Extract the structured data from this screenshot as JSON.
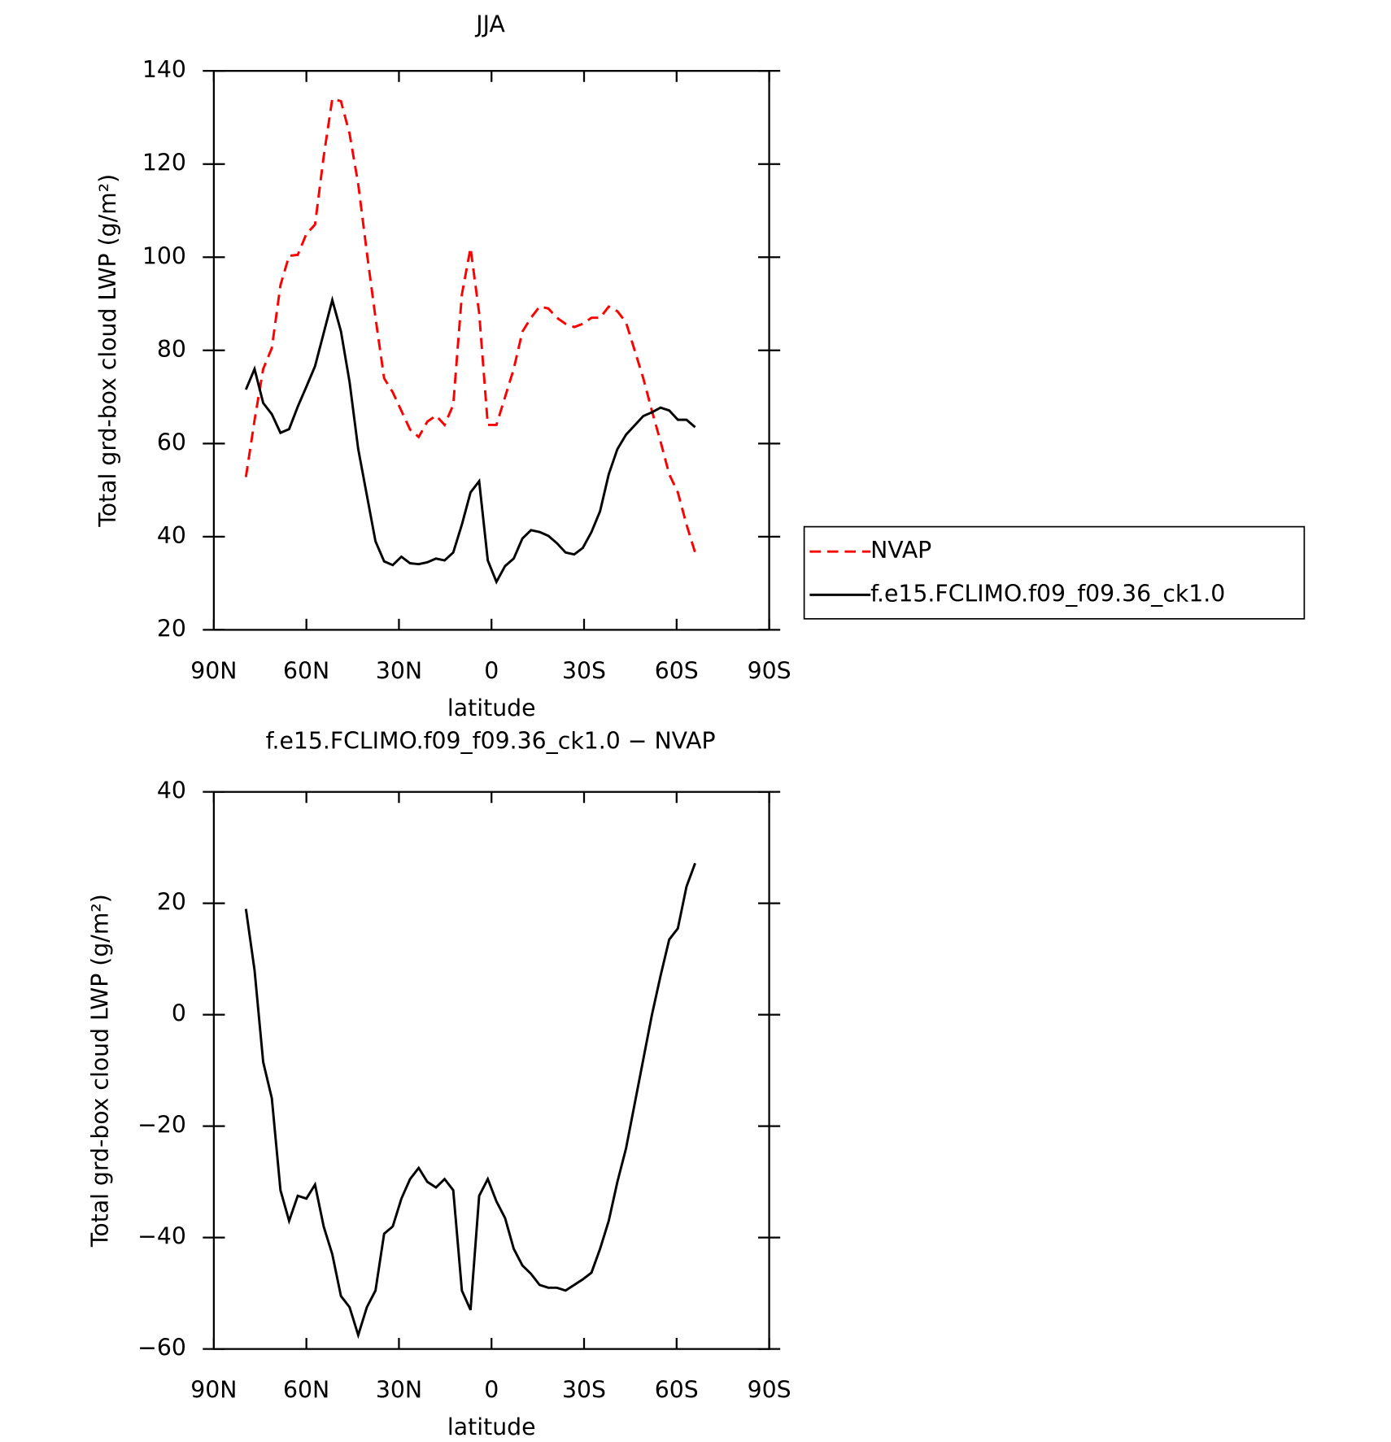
{
  "chart_data": [
    {
      "type": "line",
      "title": "JJA",
      "xlabel": "latitude",
      "ylabel": "Total grd-box cloud LWP (g/m²)",
      "x": [
        79.6,
        76.8,
        74.0,
        71.2,
        68.4,
        65.6,
        62.8,
        60.0,
        57.2,
        54.4,
        51.6,
        48.8,
        46.0,
        43.2,
        40.4,
        37.6,
        34.8,
        32.0,
        29.2,
        26.4,
        23.6,
        20.8,
        18.0,
        15.2,
        12.4,
        9.6,
        6.8,
        4.0,
        1.2,
        -1.6,
        -4.4,
        -7.2,
        -10.0,
        -12.8,
        -15.6,
        -18.4,
        -21.2,
        -24.0,
        -26.8,
        -29.6,
        -32.4,
        -35.2,
        -38.0,
        -40.8,
        -43.6,
        -46.4,
        -49.2,
        -52.0,
        -54.8,
        -57.6,
        -60.4,
        -63.2,
        -66.0
      ],
      "series": [
        {
          "name": "NVAP",
          "color": "#ff0000",
          "line_style": "dashed",
          "values": [
            52.8,
            65,
            76,
            80.5,
            94,
            100.3,
            100.5,
            105,
            107,
            121.6,
            134,
            133.5,
            126.5,
            115.7,
            101,
            87,
            74,
            71,
            67,
            63,
            61.4,
            64.7,
            66,
            64,
            68.3,
            92,
            102,
            88,
            64,
            64,
            70,
            76,
            84,
            87,
            89.4,
            89,
            87,
            85.7,
            85,
            85.7,
            87,
            87,
            89.4,
            88.4,
            86,
            80,
            74,
            67,
            60.4,
            53.4,
            49.5,
            42.6,
            36.6
          ]
        },
        {
          "name": "f.e15.FCLIMO.f09_f09.36_ck1.0",
          "color": "#000000",
          "line_style": "solid",
          "values": [
            71.6,
            76,
            68.7,
            66.3,
            62.3,
            63.1,
            67.9,
            72.2,
            76.6,
            83.7,
            90.8,
            84.1,
            73.2,
            58.8,
            48.9,
            39,
            34.7,
            33.9,
            35.7,
            34.3,
            34.1,
            34.5,
            35.3,
            34.9,
            36.6,
            42.6,
            49.5,
            51.9,
            34.9,
            30.3,
            33.7,
            35.3,
            39.6,
            41.4,
            41,
            40.2,
            38.6,
            36.6,
            36.2,
            37.6,
            41,
            45.5,
            53.4,
            58.8,
            61.9,
            63.9,
            65.9,
            66.7,
            67.7,
            67.1,
            65.1,
            65.1,
            63.5
          ]
        }
      ],
      "xlim": [
        90,
        -90
      ],
      "xticks": [
        {
          "value": 90,
          "label": "90N"
        },
        {
          "value": 60,
          "label": "60N"
        },
        {
          "value": 30,
          "label": "30N"
        },
        0,
        {
          "value": -30,
          "label": "30S"
        },
        {
          "value": -60,
          "label": "60S"
        },
        {
          "value": -90,
          "label": "90S"
        }
      ],
      "ylim": [
        20,
        140
      ],
      "yticks": [
        20,
        40,
        60,
        80,
        100,
        120,
        140
      ],
      "legend": "right"
    },
    {
      "type": "line",
      "title": "f.e15.FCLIMO.f09_f09.36_ck1.0 − NVAP",
      "xlabel": "latitude",
      "ylabel": "Total grd-box cloud LWP (g/m²)",
      "x": [
        79.6,
        76.8,
        74.0,
        71.2,
        68.4,
        65.6,
        62.8,
        60.0,
        57.2,
        54.4,
        51.6,
        48.8,
        46.0,
        43.2,
        40.4,
        37.6,
        34.8,
        32.0,
        29.2,
        26.4,
        23.6,
        20.8,
        18.0,
        15.2,
        12.4,
        9.6,
        6.8,
        4.0,
        1.2,
        -1.6,
        -4.4,
        -7.2,
        -10.0,
        -12.8,
        -15.6,
        -18.4,
        -21.2,
        -24.0,
        -26.8,
        -29.6,
        -32.4,
        -35.2,
        -38.0,
        -40.8,
        -43.6,
        -46.4,
        -49.2,
        -52.0,
        -54.8,
        -57.6,
        -60.4,
        -63.2,
        -66.0
      ],
      "values": [
        19,
        8,
        -8.5,
        -15,
        -31.5,
        -37,
        -32.5,
        -33,
        -30.5,
        -38,
        -43,
        -50.5,
        -52.5,
        -57.5,
        -52.5,
        -49.5,
        -39.3,
        -38,
        -33,
        -29.5,
        -27.5,
        -30,
        -31,
        -29.5,
        -31.5,
        -49.5,
        -53,
        -32.5,
        -29.5,
        -33.5,
        -36.5,
        -42,
        -45,
        -46.5,
        -48.5,
        -49,
        -49,
        -49.5,
        -48.5,
        -47.5,
        -46.3,
        -42,
        -37,
        -30,
        -24,
        -16,
        -8,
        0,
        7,
        13.5,
        15.5,
        23,
        27.2
      ],
      "color": "#000000",
      "line_style": "solid",
      "xlim": [
        90,
        -90
      ],
      "xticks": [
        {
          "value": 90,
          "label": "90N"
        },
        {
          "value": 60,
          "label": "60N"
        },
        {
          "value": 30,
          "label": "30N"
        },
        0,
        {
          "value": -30,
          "label": "30S"
        },
        {
          "value": -60,
          "label": "60S"
        },
        {
          "value": -90,
          "label": "90S"
        }
      ],
      "ylim": [
        -60,
        40
      ],
      "yticks": [
        {
          "value": -60,
          "label": "−60"
        },
        {
          "value": -40,
          "label": "−40"
        },
        {
          "value": -20,
          "label": "−20"
        },
        0,
        20,
        40
      ]
    }
  ]
}
